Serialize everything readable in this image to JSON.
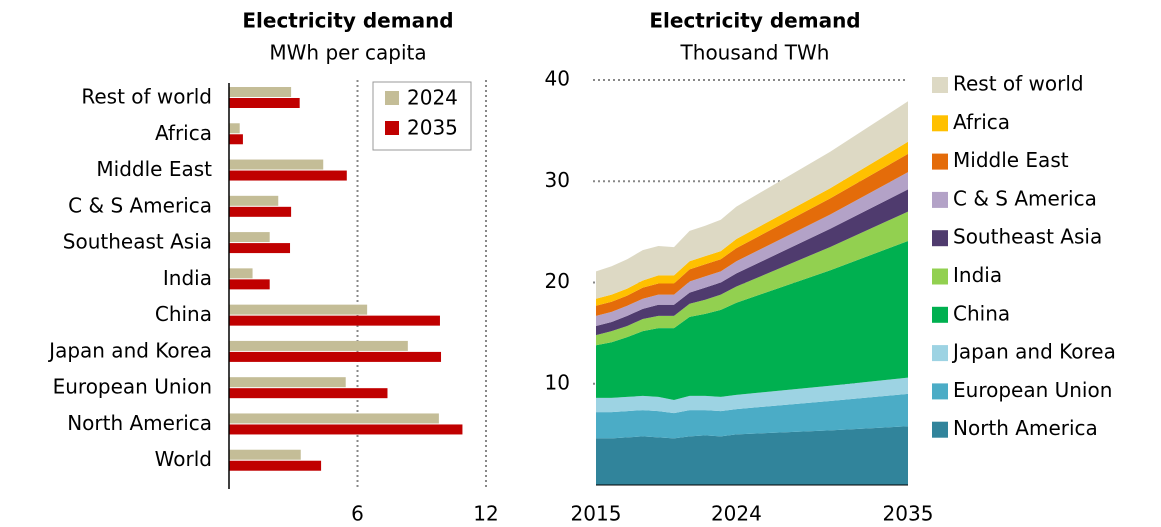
{
  "chart_data": [
    {
      "type": "bar",
      "orientation": "horizontal",
      "title": "Electricity demand",
      "subtitle": "MWh per capita",
      "categories": [
        "Rest of world",
        "Africa",
        "Middle East",
        "C & S America",
        "Southeast Asia",
        "India",
        "China",
        "Japan and Korea",
        "European Union",
        "North America",
        "World"
      ],
      "series": [
        {
          "name": "2024",
          "color": "#c4bd97",
          "values": [
            2.9,
            0.5,
            4.4,
            2.3,
            1.9,
            1.1,
            6.45,
            8.35,
            5.45,
            9.8,
            3.35
          ]
        },
        {
          "name": "2035",
          "color": "#c00000",
          "values": [
            3.3,
            0.65,
            5.5,
            2.9,
            2.85,
            1.9,
            9.85,
            9.9,
            7.4,
            10.9,
            4.3
          ]
        }
      ],
      "xlim": [
        0,
        12
      ],
      "xticks": [
        6,
        12
      ],
      "grid": true,
      "legend": "top-right"
    },
    {
      "type": "area",
      "stacked": true,
      "title": "Electricity demand",
      "subtitle": "Thousand TWh",
      "x": [
        2015,
        2016,
        2017,
        2018,
        2019,
        2020,
        2021,
        2022,
        2023,
        2024,
        2030,
        2035
      ],
      "series": [
        {
          "name": "North America",
          "color": "#31849b",
          "values": [
            4.6,
            4.6,
            4.7,
            4.8,
            4.7,
            4.6,
            4.8,
            4.9,
            4.8,
            5.0,
            5.4,
            5.8
          ]
        },
        {
          "name": "European Union",
          "color": "#4bacc6",
          "values": [
            2.6,
            2.6,
            2.6,
            2.6,
            2.6,
            2.5,
            2.6,
            2.5,
            2.5,
            2.5,
            2.9,
            3.2
          ]
        },
        {
          "name": "Japan and Korea",
          "color": "#9dd3e3",
          "values": [
            1.4,
            1.4,
            1.4,
            1.4,
            1.4,
            1.3,
            1.4,
            1.4,
            1.4,
            1.4,
            1.5,
            1.6
          ]
        },
        {
          "name": "China",
          "color": "#00b050",
          "values": [
            5.2,
            5.5,
            5.9,
            6.4,
            6.8,
            7.1,
            7.8,
            8.1,
            8.6,
            9.1,
            11.4,
            13.5
          ]
        },
        {
          "name": "India",
          "color": "#92d050",
          "values": [
            1.0,
            1.1,
            1.1,
            1.2,
            1.2,
            1.2,
            1.3,
            1.4,
            1.5,
            1.6,
            2.3,
            2.9
          ]
        },
        {
          "name": "Southeast Asia",
          "color": "#4f3b6e",
          "values": [
            0.9,
            0.9,
            1.0,
            1.0,
            1.1,
            1.1,
            1.1,
            1.2,
            1.2,
            1.3,
            1.8,
            2.2
          ]
        },
        {
          "name": "C & S America",
          "color": "#b3a2c7",
          "values": [
            1.0,
            1.0,
            1.0,
            1.0,
            1.0,
            1.0,
            1.1,
            1.1,
            1.1,
            1.2,
            1.4,
            1.7
          ]
        },
        {
          "name": "Middle East",
          "color": "#e46c0a",
          "values": [
            1.0,
            1.0,
            1.0,
            1.1,
            1.1,
            1.1,
            1.2,
            1.2,
            1.2,
            1.3,
            1.6,
            1.8
          ]
        },
        {
          "name": "Africa",
          "color": "#ffc000",
          "values": [
            0.7,
            0.7,
            0.7,
            0.7,
            0.8,
            0.8,
            0.8,
            0.8,
            0.8,
            0.9,
            1.0,
            1.2
          ]
        },
        {
          "name": "Rest of world",
          "color": "#ddd9c4",
          "values": [
            2.7,
            2.8,
            2.9,
            3.0,
            2.9,
            2.8,
            3.0,
            3.0,
            3.1,
            3.2,
            3.6,
            4.0
          ]
        }
      ],
      "xlim": [
        2015,
        2035
      ],
      "xticks": [
        2015,
        2024,
        2035
      ],
      "ylim": [
        0,
        40
      ],
      "yticks": [
        10,
        20,
        30,
        40
      ],
      "grid": true,
      "legend": "right"
    }
  ]
}
